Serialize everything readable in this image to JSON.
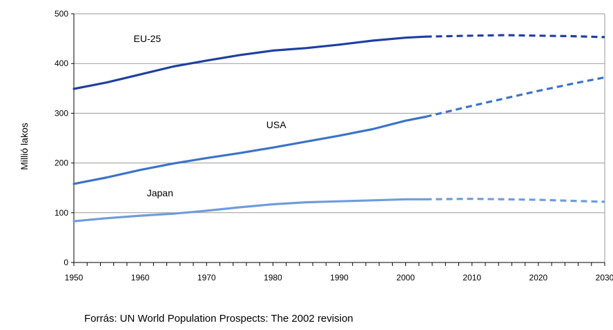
{
  "chart_data": {
    "type": "line",
    "title": "",
    "xlabel": "",
    "ylabel": "Millió lakos",
    "xlim": [
      1950,
      2030
    ],
    "ylim": [
      0,
      500
    ],
    "x_ticks": [
      1950,
      1960,
      1970,
      1980,
      1990,
      2000,
      2010,
      2020,
      2030
    ],
    "y_ticks": [
      0,
      100,
      200,
      300,
      400,
      500
    ],
    "grid": "horizontal",
    "legend": "none",
    "series": [
      {
        "name": "EU-25",
        "color": "#1f3fa0",
        "points": [
          [
            1950,
            349
          ],
          [
            1955,
            362
          ],
          [
            1960,
            378
          ],
          [
            1965,
            394
          ],
          [
            1970,
            406
          ],
          [
            1975,
            417
          ],
          [
            1980,
            426
          ],
          [
            1985,
            431
          ],
          [
            1990,
            438
          ],
          [
            1995,
            446
          ],
          [
            2000,
            452
          ],
          [
            2003,
            454
          ],
          [
            2010,
            456
          ],
          [
            2015,
            457
          ],
          [
            2020,
            456
          ],
          [
            2025,
            455
          ],
          [
            2030,
            453
          ]
        ],
        "projection_from": 2003
      },
      {
        "name": "USA",
        "color": "#3b73c8",
        "points": [
          [
            1950,
            158
          ],
          [
            1955,
            171
          ],
          [
            1960,
            186
          ],
          [
            1965,
            199
          ],
          [
            1970,
            210
          ],
          [
            1975,
            220
          ],
          [
            1980,
            231
          ],
          [
            1985,
            243
          ],
          [
            1990,
            255
          ],
          [
            1995,
            268
          ],
          [
            2000,
            285
          ],
          [
            2003,
            293
          ],
          [
            2010,
            315
          ],
          [
            2015,
            330
          ],
          [
            2020,
            345
          ],
          [
            2025,
            359
          ],
          [
            2030,
            372
          ]
        ],
        "projection_from": 2003
      },
      {
        "name": "Japan",
        "color": "#6f9cdc",
        "points": [
          [
            1950,
            83
          ],
          [
            1955,
            89
          ],
          [
            1960,
            94
          ],
          [
            1965,
            98
          ],
          [
            1970,
            104
          ],
          [
            1975,
            111
          ],
          [
            1980,
            117
          ],
          [
            1985,
            121
          ],
          [
            1990,
            123
          ],
          [
            1995,
            125
          ],
          [
            2000,
            127
          ],
          [
            2003,
            127
          ],
          [
            2010,
            128
          ],
          [
            2015,
            127
          ],
          [
            2020,
            126
          ],
          [
            2025,
            124
          ],
          [
            2030,
            122
          ]
        ],
        "projection_from": 2003
      }
    ],
    "annotations": [
      {
        "text": "EU-25",
        "x": 1959,
        "y": 443
      },
      {
        "text": "USA",
        "x": 1979,
        "y": 270
      },
      {
        "text": "Japan",
        "x": 1961,
        "y": 133
      }
    ]
  },
  "source_note": "Forrás: UN World Population Prospects: The 2002 revision"
}
